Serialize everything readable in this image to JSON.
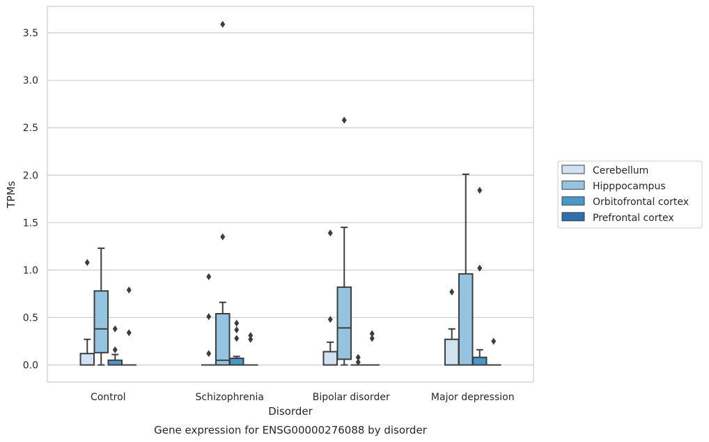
{
  "caption": "Gene expression for ENSG00000276088 by disorder",
  "chart_data": {
    "type": "box",
    "xlabel": "Disorder",
    "ylabel": "TPMs",
    "ylim": [
      -0.18,
      3.78
    ],
    "yticks": [
      0.0,
      0.5,
      1.0,
      1.5,
      2.0,
      2.5,
      3.0,
      3.5
    ],
    "ytick_labels": [
      "0.0",
      "0.5",
      "1.0",
      "1.5",
      "2.0",
      "2.5",
      "3.0",
      "3.5"
    ],
    "grid": "horizontal",
    "legend_position": "right",
    "categories": [
      "Control",
      "Schizophrenia",
      "Bipolar disorder",
      "Major depression"
    ],
    "series": [
      {
        "name": "Cerebellum",
        "color": "#d0e1f2",
        "boxes": [
          {
            "min": 0.0,
            "q1": 0.0,
            "median": 0.0,
            "q3": 0.12,
            "max": 0.27,
            "outliers": [
              1.08
            ]
          },
          {
            "min": 0.0,
            "q1": 0.0,
            "median": 0.0,
            "q3": 0.0,
            "max": 0.0,
            "outliers": [
              0.12,
              0.51,
              0.93
            ]
          },
          {
            "min": 0.0,
            "q1": 0.0,
            "median": 0.0,
            "q3": 0.14,
            "max": 0.24,
            "outliers": [
              0.48,
              1.39
            ]
          },
          {
            "min": 0.0,
            "q1": 0.0,
            "median": 0.0,
            "q3": 0.27,
            "max": 0.38,
            "outliers": [
              0.77
            ]
          }
        ]
      },
      {
        "name": "Hipppocampus",
        "color": "#94c4df",
        "boxes": [
          {
            "min": 0.0,
            "q1": 0.13,
            "median": 0.38,
            "q3": 0.78,
            "max": 1.23,
            "outliers": []
          },
          {
            "min": 0.0,
            "q1": 0.0,
            "median": 0.05,
            "q3": 0.54,
            "max": 0.66,
            "outliers": [
              1.35,
              3.59
            ]
          },
          {
            "min": 0.0,
            "q1": 0.06,
            "median": 0.39,
            "q3": 0.82,
            "max": 1.45,
            "outliers": [
              2.58
            ]
          },
          {
            "min": 0.0,
            "q1": 0.0,
            "median": 0.0,
            "q3": 0.96,
            "max": 2.01,
            "outliers": []
          }
        ]
      },
      {
        "name": "Orbitofrontal cortex",
        "color": "#4a98c9",
        "boxes": [
          {
            "min": 0.0,
            "q1": 0.0,
            "median": 0.0,
            "q3": 0.05,
            "max": 0.11,
            "outliers": [
              0.16,
              0.38
            ]
          },
          {
            "min": 0.0,
            "q1": 0.0,
            "median": 0.0,
            "q3": 0.07,
            "max": 0.09,
            "outliers": [
              0.28,
              0.37,
              0.44
            ]
          },
          {
            "min": 0.0,
            "q1": 0.0,
            "median": 0.0,
            "q3": 0.0,
            "max": 0.0,
            "outliers": [
              0.03,
              0.08
            ]
          },
          {
            "min": 0.0,
            "q1": 0.0,
            "median": 0.0,
            "q3": 0.08,
            "max": 0.16,
            "outliers": [
              1.02,
              1.84
            ]
          }
        ]
      },
      {
        "name": "Prefrontal cortex",
        "color": "#2e6fad",
        "boxes": [
          {
            "min": 0.0,
            "q1": 0.0,
            "median": 0.0,
            "q3": 0.0,
            "max": 0.0,
            "outliers": [
              0.34,
              0.79
            ]
          },
          {
            "min": 0.0,
            "q1": 0.0,
            "median": 0.0,
            "q3": 0.0,
            "max": 0.0,
            "outliers": [
              0.27,
              0.31
            ]
          },
          {
            "min": 0.0,
            "q1": 0.0,
            "median": 0.0,
            "q3": 0.0,
            "max": 0.0,
            "outliers": [
              0.28,
              0.33
            ]
          },
          {
            "min": 0.0,
            "q1": 0.0,
            "median": 0.0,
            "q3": 0.0,
            "max": 0.0,
            "outliers": [
              0.25
            ]
          }
        ]
      }
    ]
  }
}
